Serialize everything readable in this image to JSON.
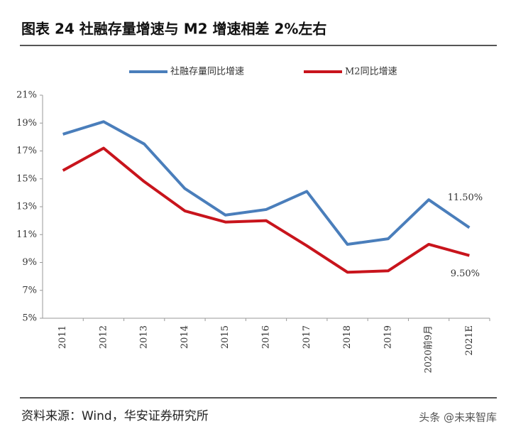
{
  "chart_data": {
    "type": "line",
    "title": "图表 24  社融存量增速与 M2 增速相差 2%左右",
    "source": "资料来源：Wind，华安证券研究所",
    "watermark": "头条 @未来智库",
    "categories": [
      "2011",
      "2012",
      "2013",
      "2014",
      "2015",
      "2016",
      "2017",
      "2018",
      "2019",
      "2020前9月",
      "2021E"
    ],
    "series": [
      {
        "name": "社融存量同比增速",
        "color": "#4a7ebb",
        "values": [
          18.2,
          19.1,
          17.5,
          14.3,
          12.4,
          12.8,
          14.1,
          10.3,
          10.7,
          13.5,
          11.5
        ],
        "value_labels": [
          null,
          null,
          null,
          null,
          null,
          null,
          null,
          null,
          null,
          null,
          "11.50%"
        ]
      },
      {
        "name": "M2同比增速",
        "color": "#c8141c",
        "values": [
          15.6,
          17.2,
          14.8,
          12.7,
          11.9,
          12.0,
          10.2,
          8.3,
          8.4,
          10.3,
          9.5
        ],
        "value_labels": [
          null,
          null,
          null,
          null,
          null,
          null,
          null,
          null,
          null,
          null,
          "9.50%"
        ]
      }
    ],
    "ylim": [
      5,
      21
    ],
    "yticks": [
      {
        "value": 5,
        "label": "5%"
      },
      {
        "value": 7,
        "label": "7%"
      },
      {
        "value": 9,
        "label": "9%"
      },
      {
        "value": 11,
        "label": "11%"
      },
      {
        "value": 13,
        "label": "13%"
      },
      {
        "value": 15,
        "label": "15%"
      },
      {
        "value": 17,
        "label": "17%"
      },
      {
        "value": 19,
        "label": "19%"
      },
      {
        "value": 21,
        "label": "21%"
      }
    ],
    "legend": "top"
  }
}
